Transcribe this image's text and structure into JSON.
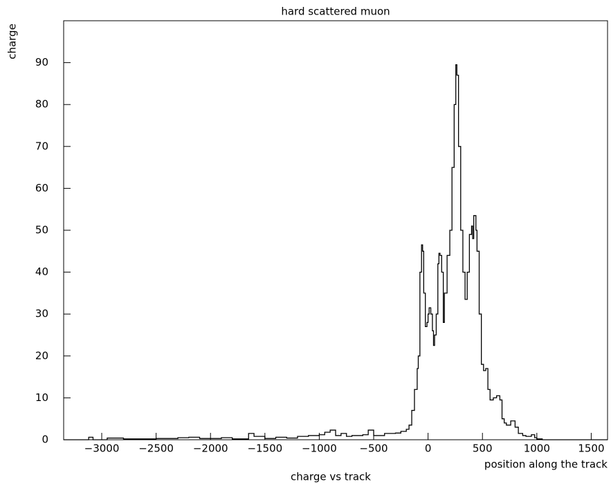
{
  "chart_data": {
    "type": "line",
    "title": "hard scattered muon",
    "y_label": "charge",
    "x_label": "position along the track",
    "caption": "charge vs track",
    "color": "#000000",
    "step": true,
    "xlim": [
      -3350,
      1650
    ],
    "ylim": [
      0,
      100
    ],
    "xticks": [
      {
        "value": -3000,
        "label": "−3000"
      },
      {
        "value": -2500,
        "label": "−2500"
      },
      {
        "value": -2000,
        "label": "−2000"
      },
      {
        "value": -1500,
        "label": "−1500"
      },
      {
        "value": -1000,
        "label": "−1000"
      },
      {
        "value": -500,
        "label": "−500"
      },
      0,
      500,
      1000,
      1500
    ],
    "yticks": [
      0,
      10,
      20,
      30,
      40,
      50,
      60,
      70,
      80,
      90
    ],
    "x": [
      -3350,
      -3120,
      -3080,
      -2950,
      -2800,
      -2500,
      -2300,
      -2200,
      -2100,
      -1900,
      -1800,
      -1650,
      -1600,
      -1500,
      -1400,
      -1300,
      -1200,
      -1100,
      -1000,
      -950,
      -900,
      -850,
      -800,
      -750,
      -700,
      -600,
      -550,
      -500,
      -400,
      -300,
      -250,
      -200,
      -175,
      -150,
      -125,
      -100,
      -90,
      -75,
      -60,
      -50,
      -40,
      -25,
      -10,
      0,
      10,
      25,
      40,
      50,
      60,
      75,
      90,
      100,
      110,
      125,
      140,
      150,
      175,
      200,
      220,
      240,
      255,
      265,
      280,
      300,
      320,
      340,
      360,
      380,
      400,
      410,
      420,
      440,
      450,
      470,
      490,
      510,
      530,
      550,
      570,
      600,
      630,
      660,
      680,
      700,
      720,
      760,
      780,
      800,
      830,
      870,
      900,
      950,
      980,
      1000,
      1050,
      1650
    ],
    "values": [
      0,
      0.6,
      0,
      0.4,
      0.2,
      0.3,
      0.5,
      0.6,
      0.3,
      0.5,
      0.2,
      1.5,
      0.8,
      0.3,
      0.6,
      0.4,
      0.8,
      1.0,
      1.2,
      1.8,
      2.3,
      1.0,
      1.5,
      0.8,
      1.0,
      1.2,
      2.3,
      1.0,
      1.5,
      1.6,
      2.0,
      2.5,
      3.5,
      7,
      12,
      17,
      20,
      40,
      46.5,
      45,
      35,
      27,
      28,
      30,
      31.5,
      30,
      26,
      22.5,
      25,
      30,
      42,
      44.5,
      44,
      40,
      28,
      35,
      44,
      50,
      65,
      80,
      89.5,
      87,
      70,
      50,
      40,
      33.5,
      40,
      49,
      51,
      48,
      53.5,
      50,
      45,
      30,
      18,
      16.5,
      17,
      12,
      9.5,
      10,
      10.5,
      9.5,
      5,
      4,
      3.5,
      4.5,
      4.5,
      3,
      1.5,
      1,
      0.8,
      1.2,
      0.5,
      0.2,
      0,
      0
    ]
  }
}
